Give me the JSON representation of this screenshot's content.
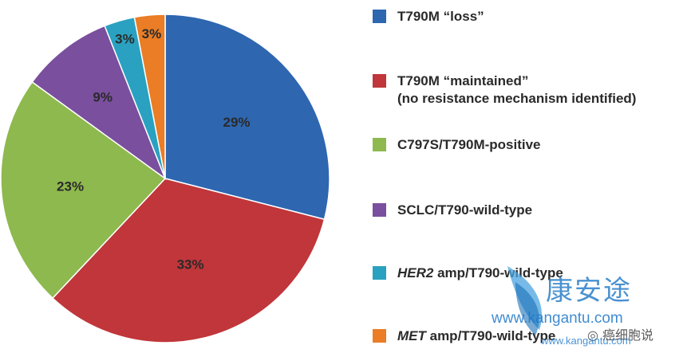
{
  "chart_data": {
    "type": "pie",
    "title": "",
    "start_angle_deg": 0,
    "direction": "clockwise",
    "slices": [
      {
        "label": "T790M “loss”",
        "value": 29,
        "value_label": "29%",
        "color": "#2e66b0"
      },
      {
        "label": "T790M “maintained”",
        "sublabel": "(no resistance mechanism identified)",
        "value": 33,
        "value_label": "33%",
        "color": "#c0363a"
      },
      {
        "label": "C797S/T790M-positive",
        "value": 23,
        "value_label": "23%",
        "color": "#8eb94e"
      },
      {
        "label": "SCLC/T790-wild-type",
        "value": 9,
        "value_label": "9%",
        "color": "#7a4f9e"
      },
      {
        "label_italic": "HER2",
        "label": " amp/T790-wild-type",
        "value": 3,
        "value_label": "3%",
        "color": "#2aa1c0"
      },
      {
        "label_italic": "MET",
        "label": " amp/T790-wild-type",
        "value": 3,
        "value_label": "3%",
        "color": "#ea7d25"
      }
    ],
    "legend_position": "right"
  },
  "watermark": {
    "chinese": "康安途",
    "url": "www.kangantu.com",
    "tag": "◎ 癌细胞说",
    "url_small": "www.kangantu.com"
  }
}
